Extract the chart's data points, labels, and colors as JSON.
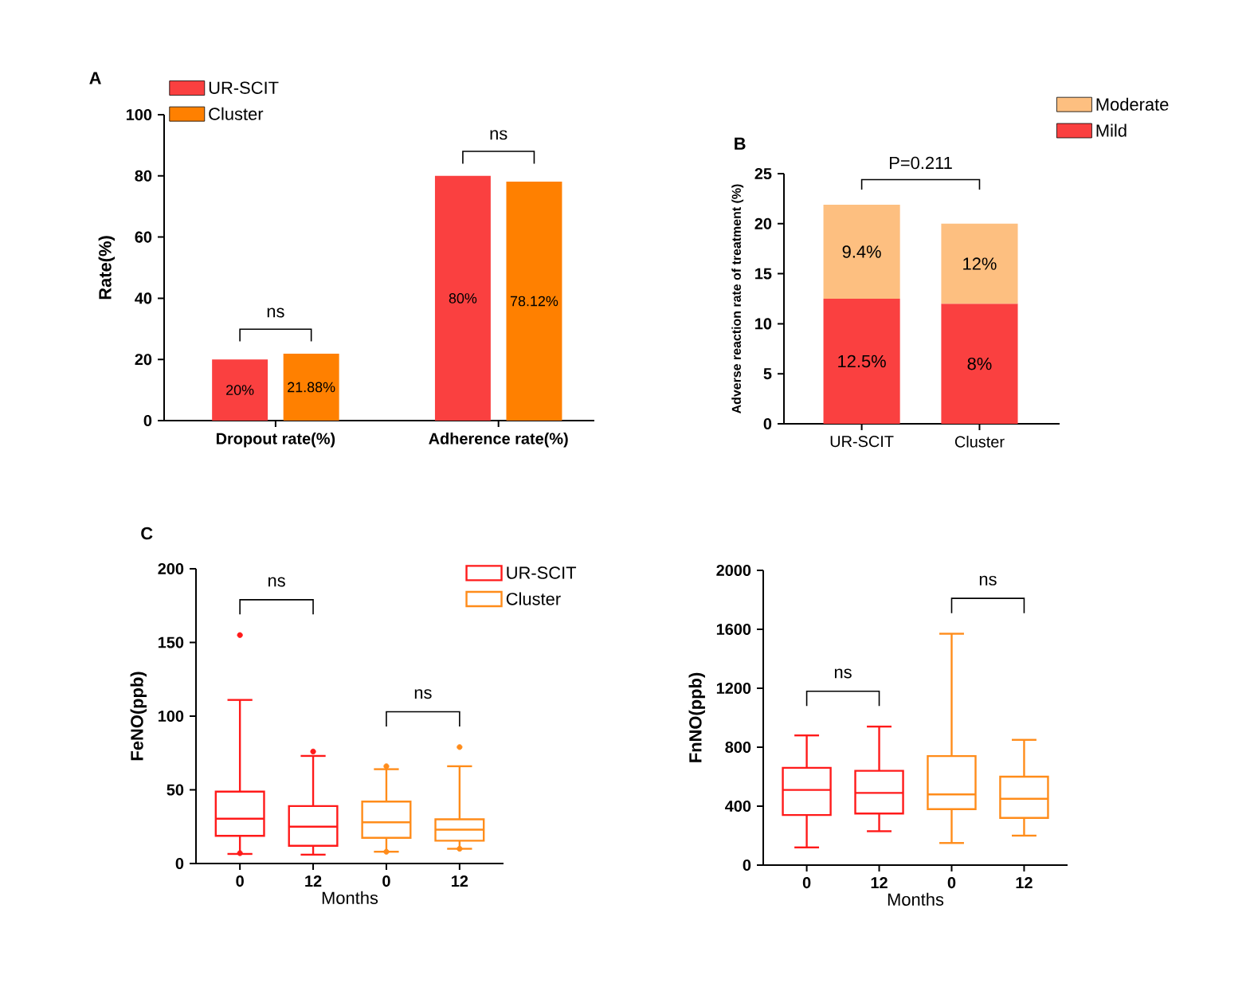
{
  "chart_data": [
    {
      "type": "bar",
      "title": "A",
      "ylabel": "Rate(%)",
      "categories": [
        "Dropout rate(%)",
        "Adherence rate(%)"
      ],
      "series": [
        {
          "name": "UR-SCIT",
          "color": "#fa4040",
          "values": [
            20,
            80
          ],
          "value_labels": [
            "20%",
            "80%"
          ]
        },
        {
          "name": "Cluster",
          "color": "#ff8000",
          "values": [
            21.88,
            78.12
          ],
          "value_labels": [
            "21.88%",
            "78.12%"
          ]
        }
      ],
      "ylim": [
        0,
        100
      ],
      "yticks": [
        0,
        20,
        40,
        60,
        80,
        100
      ],
      "legend": "top left",
      "annotations": [
        "ns",
        "ns"
      ]
    },
    {
      "type": "bar",
      "title": "B",
      "ylabel": "Adverse reaction rate of treatment (%)",
      "categories": [
        "UR-SCIT",
        "Cluster"
      ],
      "stacked": true,
      "series": [
        {
          "name": "Mild",
          "color": "#fa4040",
          "values": [
            12.5,
            12
          ]
        },
        {
          "name": "Moderate",
          "color": "#fdbf80",
          "values": [
            9.4,
            8
          ]
        }
      ],
      "ylim": [
        0,
        25
      ],
      "yticks": [
        0,
        5,
        10,
        15,
        20,
        25
      ],
      "legend": "top right",
      "annotations": [
        "P=0.211",
        "9.4%",
        "12.5%",
        "12%",
        "8%"
      ]
    },
    {
      "type": "box",
      "title": "C",
      "xlabel": "Months",
      "ylabel": "FeNO(ppb)",
      "categories": [
        "0",
        "12",
        "0",
        "12"
      ],
      "series": [
        {
          "name": "UR-SCIT",
          "color": "#ff1a1a",
          "boxes": [
            {
              "low": 6.5,
              "q1": 18.8,
              "median": 30.4,
              "q3": 48.8,
              "high": 111,
              "outliers": [
                155,
                7
              ]
            },
            {
              "low": 6,
              "q1": 12,
              "median": 25,
              "q3": 39,
              "high": 73,
              "outliers": [
                76
              ]
            },
            null,
            null
          ]
        },
        {
          "name": "Cluster",
          "color": "#ff8c1a",
          "boxes": [
            null,
            null,
            {
              "low": 8,
              "q1": 17.4,
              "median": 28,
              "q3": 42,
              "high": 64,
              "outliers": [
                66,
                8
              ]
            },
            {
              "low": 10,
              "q1": 15.5,
              "median": 23,
              "q3": 30,
              "high": 66,
              "outliers": [
                79,
                10
              ]
            }
          ]
        }
      ],
      "ylim": [
        0,
        200
      ],
      "yticks": [
        0,
        50,
        100,
        150,
        200
      ],
      "legend": "top right",
      "annotations": [
        "ns",
        "ns"
      ]
    },
    {
      "type": "box",
      "xlabel": "Months",
      "ylabel": "FnNO(ppb)",
      "categories": [
        "0",
        "12",
        "0",
        "12"
      ],
      "series": [
        {
          "color": "#ff1a1a",
          "boxes": [
            {
              "low": 120,
              "q1": 340,
              "median": 510,
              "q3": 660,
              "high": 880
            },
            {
              "low": 230,
              "q1": 350,
              "median": 490,
              "q3": 640,
              "high": 940
            },
            null,
            null
          ]
        },
        {
          "color": "#ff8c1a",
          "boxes": [
            null,
            null,
            {
              "low": 150,
              "q1": 380,
              "median": 480,
              "q3": 740,
              "high": 1570
            },
            {
              "low": 200,
              "q1": 320,
              "median": 450,
              "q3": 600,
              "high": 850
            }
          ]
        }
      ],
      "ylim": [
        0,
        2000
      ],
      "yticks": [
        0,
        400,
        800,
        1200,
        1600,
        2000
      ],
      "annotations": [
        "ns",
        "ns"
      ]
    }
  ]
}
